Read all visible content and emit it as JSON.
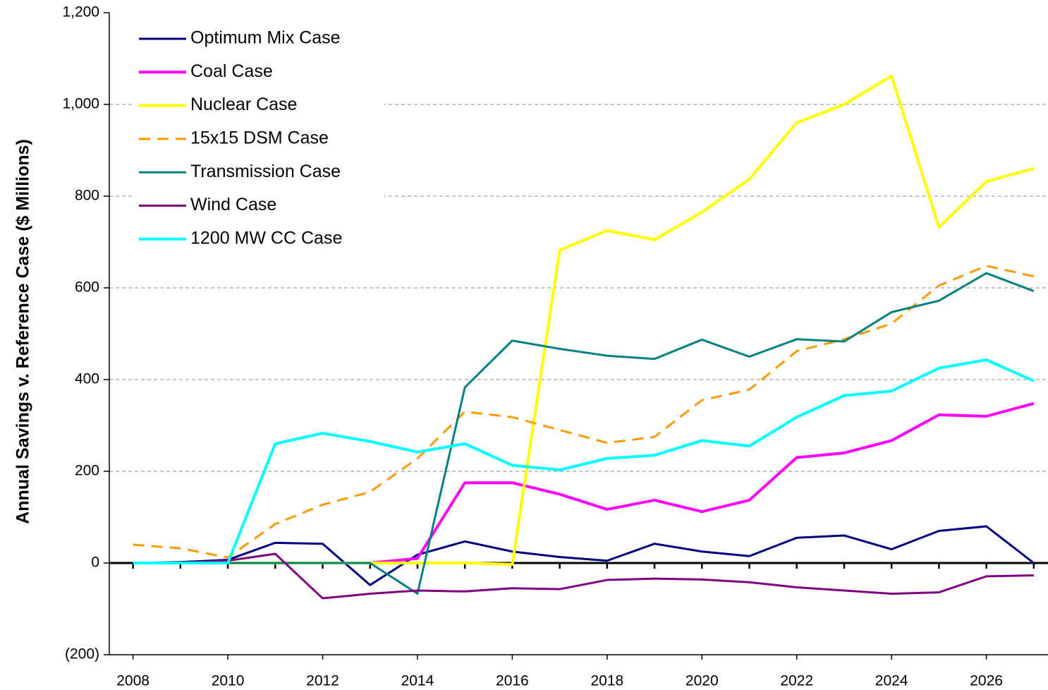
{
  "chart_data": {
    "type": "line",
    "y_label": "Annual Savings v. Reference Case ($ Millions)",
    "x": [
      2008,
      2009,
      2010,
      2011,
      2012,
      2013,
      2014,
      2015,
      2016,
      2017,
      2018,
      2019,
      2020,
      2021,
      2022,
      2023,
      2024,
      2025,
      2026,
      2027
    ],
    "xlim": [
      2007.5,
      2027.3
    ],
    "xticks": [
      2008,
      2010,
      2012,
      2014,
      2016,
      2018,
      2020,
      2022,
      2024,
      2026
    ],
    "ylim": [
      -200,
      1200
    ],
    "yticks": [
      {
        "value": -200,
        "label": "(200)"
      },
      0,
      200,
      400,
      600,
      800,
      {
        "value": 1000,
        "label": "1,000"
      },
      {
        "value": 1200,
        "label": "1,200"
      }
    ],
    "grid": true,
    "legend": "upper left",
    "series": [
      {
        "name": "Optimum Mix Case",
        "color": "#000080",
        "width": 3,
        "values": [
          0,
          2,
          7,
          44,
          42,
          -48,
          18,
          47,
          25,
          13,
          5,
          42,
          25,
          15,
          55,
          60,
          30,
          70,
          80,
          0
        ]
      },
      {
        "name": "Coal Case",
        "color": "#ff00ff",
        "width": 4,
        "values": [
          0,
          0,
          0,
          0,
          0,
          0,
          10,
          175,
          175,
          150,
          117,
          137,
          112,
          137,
          230,
          240,
          267,
          323,
          320,
          348
        ]
      },
      {
        "name": "Nuclear Case",
        "color": "#ffff00",
        "width": 4,
        "values": [
          0,
          0,
          0,
          0,
          0,
          0,
          0,
          0,
          -3,
          682,
          725,
          705,
          765,
          837,
          960,
          1000,
          1062,
          732,
          832,
          860
        ]
      },
      {
        "name": "15x15 DSM Case",
        "color": "#ff9900",
        "width": 3,
        "dashed": true,
        "values": [
          40,
          32,
          12,
          85,
          127,
          155,
          228,
          330,
          318,
          290,
          262,
          275,
          355,
          378,
          462,
          488,
          522,
          605,
          648,
          625
        ]
      },
      {
        "name": "Transmission Case",
        "color": "#008080",
        "width": 3,
        "values": [
          0,
          0,
          0,
          0,
          0,
          0,
          -67,
          383,
          485,
          467,
          452,
          445,
          487,
          450,
          488,
          483,
          547,
          572,
          632,
          593
        ]
      },
      {
        "name": "Wind Case",
        "color": "#800080",
        "width": 3,
        "values": [
          0,
          0,
          5,
          20,
          -77,
          -67,
          -60,
          -62,
          -55,
          -57,
          -37,
          -34,
          -36,
          -42,
          -53,
          -60,
          -67,
          -64,
          -29,
          -27
        ]
      },
      {
        "name": "1200 MW CC Case",
        "color": "#00ffff",
        "width": 4,
        "values": [
          0,
          0,
          0,
          260,
          283,
          265,
          242,
          260,
          213,
          203,
          228,
          235,
          267,
          255,
          318,
          365,
          375,
          425,
          443,
          397
        ]
      }
    ]
  }
}
